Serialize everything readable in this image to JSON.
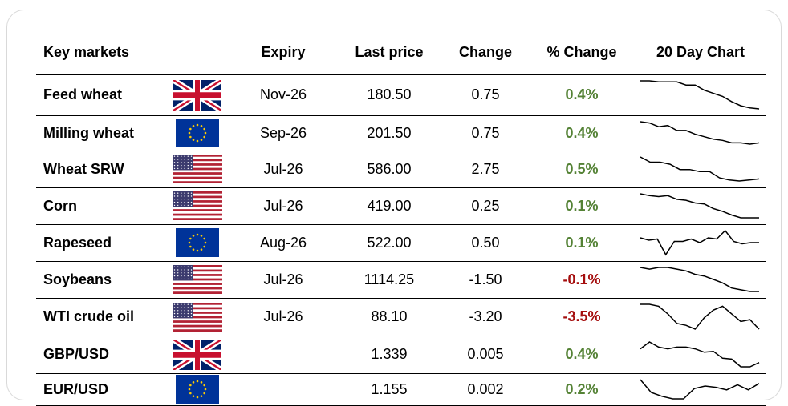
{
  "headers": {
    "market": "Key markets",
    "expiry": "Expiry",
    "last_price": "Last price",
    "change": "Change",
    "pct_change": "% Change",
    "chart": "20 Day Chart"
  },
  "colors": {
    "positive": "#548235",
    "negative": "#a50e0e",
    "line": "#000000"
  },
  "rows": [
    {
      "name": "Feed wheat",
      "flag": "uk-flag-icon",
      "expiry": "Nov-26",
      "last": "180.50",
      "change": "0.75",
      "pct": "0.4%",
      "dir": "pos",
      "spark": [
        100,
        100,
        99,
        99,
        99,
        96,
        96,
        91,
        88,
        85,
        80,
        76,
        74,
        73
      ]
    },
    {
      "name": "Milling wheat",
      "flag": "eu-flag-icon",
      "expiry": "Sep-26",
      "last": "201.50",
      "change": "0.75",
      "pct": "0.4%",
      "dir": "pos",
      "spark": [
        100,
        99,
        96,
        97,
        93,
        93,
        90,
        88,
        86,
        85,
        83,
        83,
        82,
        83
      ]
    },
    {
      "name": "Wheat SRW",
      "flag": "us-flag-icon",
      "expiry": "Jul-26",
      "last": "586.00",
      "change": "2.75",
      "pct": "0.5%",
      "dir": "pos",
      "spark": [
        100,
        95,
        95,
        93,
        88,
        88,
        86,
        86,
        80,
        78,
        77,
        78,
        79
      ]
    },
    {
      "name": "Corn",
      "flag": "us-flag-icon",
      "expiry": "Jul-26",
      "last": "419.00",
      "change": "0.25",
      "pct": "0.1%",
      "dir": "pos",
      "spark": [
        100,
        98,
        97,
        98,
        94,
        93,
        90,
        89,
        84,
        81,
        77,
        74,
        74,
        74
      ]
    },
    {
      "name": "Rapeseed",
      "flag": "eu-flag-icon",
      "expiry": "Aug-26",
      "last": "522.00",
      "change": "0.50",
      "pct": "0.1%",
      "dir": "pos",
      "spark": [
        98,
        96,
        97,
        84,
        95,
        95,
        97,
        94,
        98,
        97,
        104,
        95,
        93,
        94,
        94
      ]
    },
    {
      "name": "Soybeans",
      "flag": "us-flag-icon",
      "expiry": "Jul-26",
      "last": "1114.25",
      "change": "-1.50",
      "pct": "-0.1%",
      "dir": "neg",
      "spark": [
        100,
        99,
        100,
        100,
        99,
        98,
        96,
        95,
        93,
        91,
        88,
        87,
        86,
        86
      ]
    },
    {
      "name": "WTI crude oil",
      "flag": "us-flag-icon",
      "expiry": "Jul-26",
      "last": "88.10",
      "change": "-3.20",
      "pct": "-3.5%",
      "dir": "neg",
      "spark": [
        100,
        100,
        98,
        90,
        80,
        78,
        74,
        86,
        94,
        98,
        90,
        82,
        84,
        74
      ]
    },
    {
      "name": "GBP/USD",
      "flag": "uk-flag-icon",
      "expiry": "",
      "last": "1.339",
      "change": "0.005",
      "pct": "0.4%",
      "dir": "pos",
      "spark": [
        96,
        104,
        98,
        96,
        98,
        98,
        96,
        92,
        93,
        85,
        84,
        75,
        75,
        80
      ]
    },
    {
      "name": "EUR/USD",
      "flag": "eu-flag-icon",
      "expiry": "",
      "last": "1.155",
      "change": "0.002",
      "pct": "0.2%",
      "dir": "pos",
      "spark": [
        100,
        90,
        87,
        85,
        85,
        93,
        95,
        94,
        92,
        96,
        92,
        97
      ]
    }
  ]
}
